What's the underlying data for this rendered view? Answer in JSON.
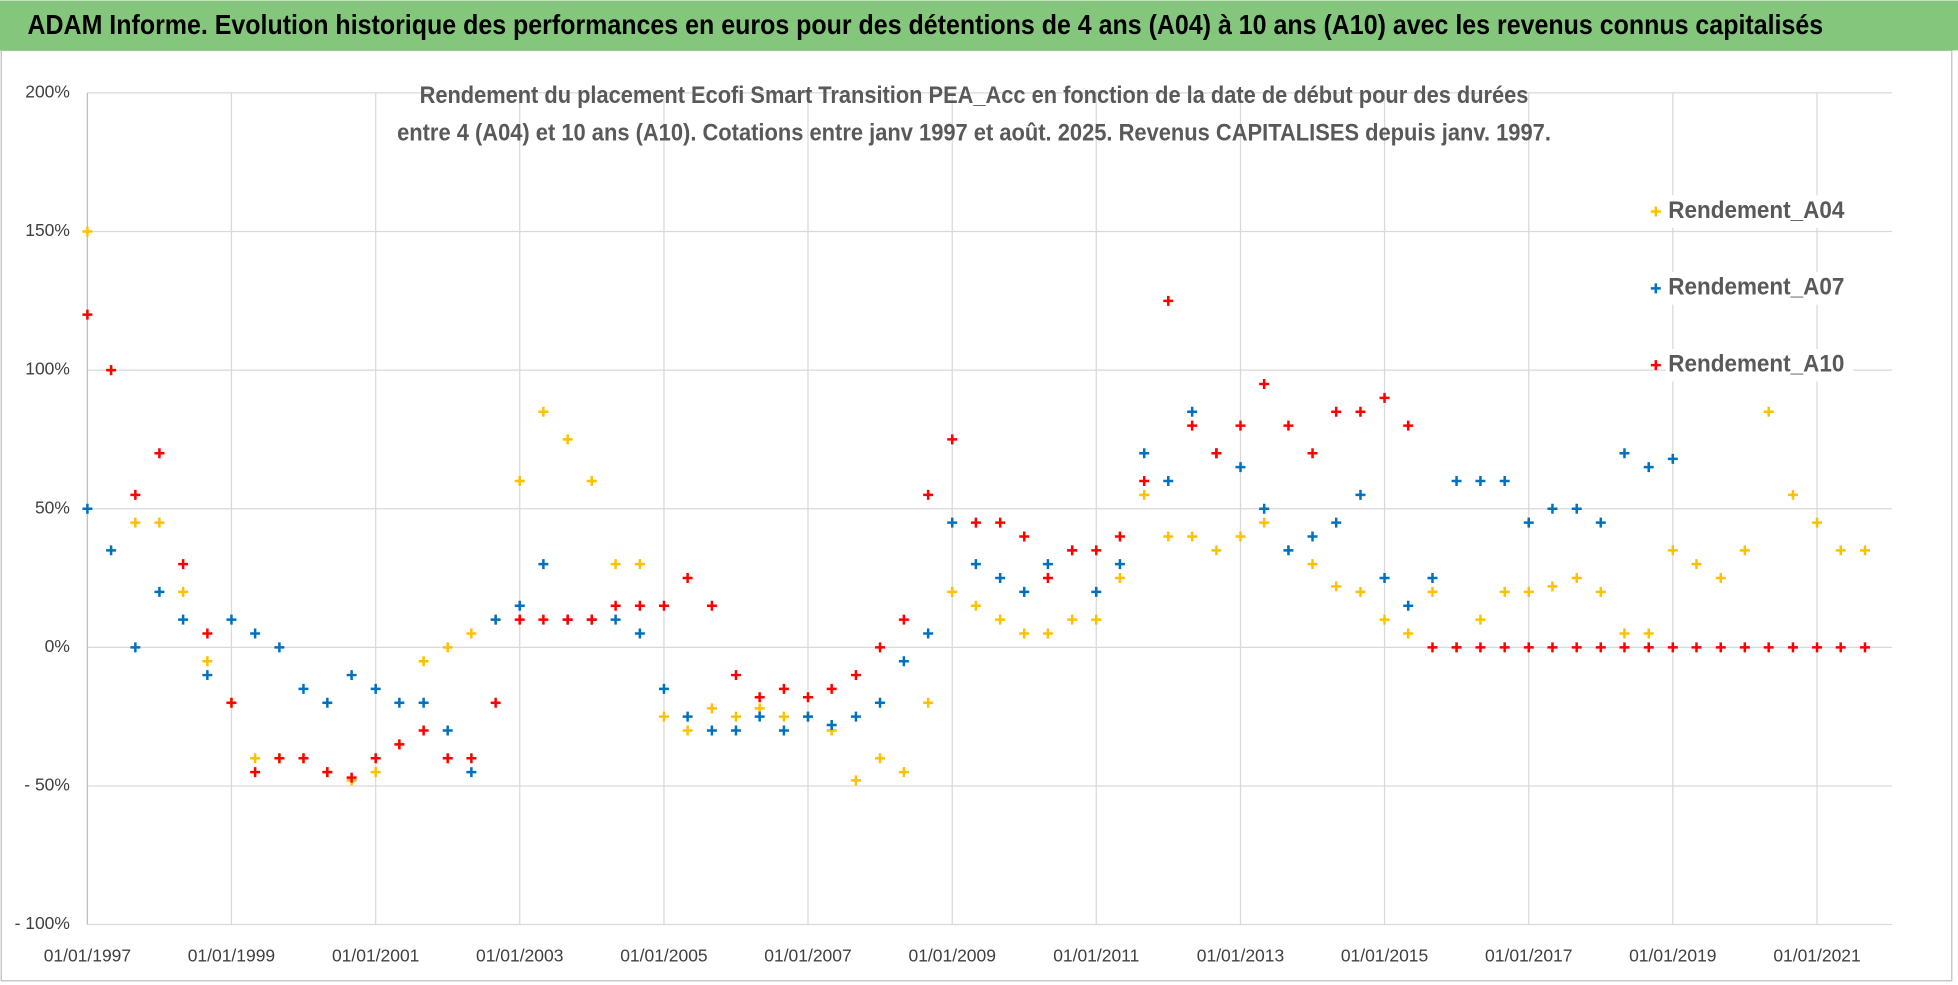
{
  "chart_data": {
    "type": "scatter",
    "title": "ADAM Informe. Evolution historique des performances en euros pour des détentions de 4 ans (A04) à 10 ans (A10) avec les revenus connus capitalisés",
    "subtitle": [
      "Rendement du placement Ecofi Smart  Transition PEA_Acc en fonction de la date de début pour des durées",
      "entre 4 (A04) et 10 ans (A10). Cotations entre janv 1997 et août. 2025. Revenus CAPITALISES depuis janv. 1997."
    ],
    "xlim": [
      "1997-01-01",
      "2022-01-15"
    ],
    "xticks": [
      {
        "value": "1997-01-01",
        "label": "01/01/1997"
      },
      {
        "value": "1999-01-01",
        "label": "01/01/1999"
      },
      {
        "value": "2001-01-01",
        "label": "01/01/2001"
      },
      {
        "value": "2003-01-01",
        "label": "01/01/2003"
      },
      {
        "value": "2005-01-01",
        "label": "01/01/2005"
      },
      {
        "value": "2007-01-01",
        "label": "01/01/2007"
      },
      {
        "value": "2009-01-01",
        "label": "01/01/2009"
      },
      {
        "value": "2011-01-01",
        "label": "01/01/2011"
      },
      {
        "value": "2013-01-01",
        "label": "01/01/2013"
      },
      {
        "value": "2015-01-01",
        "label": "01/01/2015"
      },
      {
        "value": "2017-01-01",
        "label": "01/01/2017"
      },
      {
        "value": "2019-01-01",
        "label": "01/01/2019"
      },
      {
        "value": "2021-01-01",
        "label": "01/01/2021"
      }
    ],
    "ylim": [
      -100,
      200
    ],
    "yticks": [
      {
        "value": -100,
        "label": "- 100%"
      },
      {
        "value": -50,
        "label": "- 50%"
      },
      {
        "value": 0,
        "label": "0%"
      },
      {
        "value": 50,
        "label": "50%"
      },
      {
        "value": 100,
        "label": "100%"
      },
      {
        "value": 150,
        "label": "150%"
      },
      {
        "value": 200,
        "label": "200%"
      }
    ],
    "grid": true,
    "legend": "right",
    "x": [
      "1997-01-01",
      "1997-05-01",
      "1997-09-01",
      "1998-01-01",
      "1998-05-01",
      "1998-09-01",
      "1999-01-01",
      "1999-05-01",
      "1999-09-01",
      "2000-01-01",
      "2000-05-01",
      "2000-09-01",
      "2001-01-01",
      "2001-05-01",
      "2001-09-01",
      "2002-01-01",
      "2002-05-01",
      "2002-09-01",
      "2003-01-01",
      "2003-05-01",
      "2003-09-01",
      "2004-01-01",
      "2004-05-01",
      "2004-09-01",
      "2005-01-01",
      "2005-05-01",
      "2005-09-01",
      "2006-01-01",
      "2006-05-01",
      "2006-09-01",
      "2007-01-01",
      "2007-05-01",
      "2007-09-01",
      "2008-01-01",
      "2008-05-01",
      "2008-09-01",
      "2009-01-01",
      "2009-05-01",
      "2009-09-01",
      "2010-01-01",
      "2010-05-01",
      "2010-09-01",
      "2011-01-01",
      "2011-05-01",
      "2011-09-01",
      "2012-01-01",
      "2012-05-01",
      "2012-09-01",
      "2013-01-01",
      "2013-05-01",
      "2013-09-01",
      "2014-01-01",
      "2014-05-01",
      "2014-09-01",
      "2015-01-01",
      "2015-05-01",
      "2015-09-01",
      "2016-01-01",
      "2016-05-01",
      "2016-09-01",
      "2017-01-01",
      "2017-05-01",
      "2017-09-01",
      "2018-01-01",
      "2018-05-01",
      "2018-09-01",
      "2019-01-01",
      "2019-05-01",
      "2019-09-01",
      "2020-01-01",
      "2020-05-01",
      "2020-09-01",
      "2021-01-01",
      "2021-05-01",
      "2021-09-01"
    ],
    "series": [
      {
        "name": "Rendement_A04",
        "color": "#ffc000",
        "values": [
          150,
          100,
          45,
          45,
          20,
          -5,
          -20,
          -40,
          -40,
          -40,
          -45,
          -48,
          -45,
          -35,
          -5,
          0,
          5,
          10,
          60,
          85,
          75,
          60,
          30,
          30,
          -25,
          -30,
          -22,
          -25,
          -22,
          -25,
          -25,
          -30,
          -48,
          -40,
          -45,
          -20,
          20,
          15,
          10,
          5,
          5,
          10,
          10,
          25,
          55,
          40,
          40,
          35,
          40,
          45,
          35,
          30,
          22,
          20,
          10,
          5,
          20,
          0,
          10,
          20,
          20,
          22,
          25,
          20,
          5,
          5,
          35,
          30,
          25,
          35,
          85,
          55,
          45,
          35,
          35
        ]
      },
      {
        "name": "Rendement_A07",
        "color": "#0070c0",
        "values": [
          50,
          35,
          0,
          20,
          10,
          -10,
          10,
          5,
          0,
          -15,
          -20,
          -10,
          -15,
          -20,
          -20,
          -30,
          -45,
          10,
          15,
          30,
          10,
          10,
          10,
          5,
          -15,
          -25,
          -30,
          -30,
          -25,
          -30,
          -25,
          -28,
          -25,
          -20,
          -5,
          5,
          45,
          30,
          25,
          20,
          30,
          35,
          20,
          30,
          70,
          60,
          85,
          70,
          65,
          50,
          35,
          40,
          45,
          55,
          25,
          15,
          25,
          60,
          60,
          60,
          45,
          50,
          50,
          45,
          70,
          65,
          68,
          null,
          null,
          null,
          null,
          null,
          null,
          null,
          null
        ]
      },
      {
        "name": "Rendement_A10",
        "color": "#ff0000",
        "values": [
          120,
          100,
          55,
          70,
          30,
          5,
          -20,
          -45,
          -40,
          -40,
          -45,
          -47,
          -40,
          -35,
          -30,
          -40,
          -40,
          -20,
          10,
          10,
          10,
          10,
          15,
          15,
          15,
          25,
          15,
          -10,
          -18,
          -15,
          -18,
          -15,
          -10,
          0,
          10,
          55,
          75,
          45,
          45,
          40,
          25,
          35,
          35,
          40,
          60,
          125,
          80,
          70,
          80,
          95,
          80,
          70,
          85,
          85,
          90,
          80,
          0,
          0,
          0,
          0,
          0,
          0,
          0,
          0,
          0,
          0,
          0,
          0,
          0,
          0,
          0,
          0,
          0,
          0,
          0
        ]
      }
    ]
  }
}
